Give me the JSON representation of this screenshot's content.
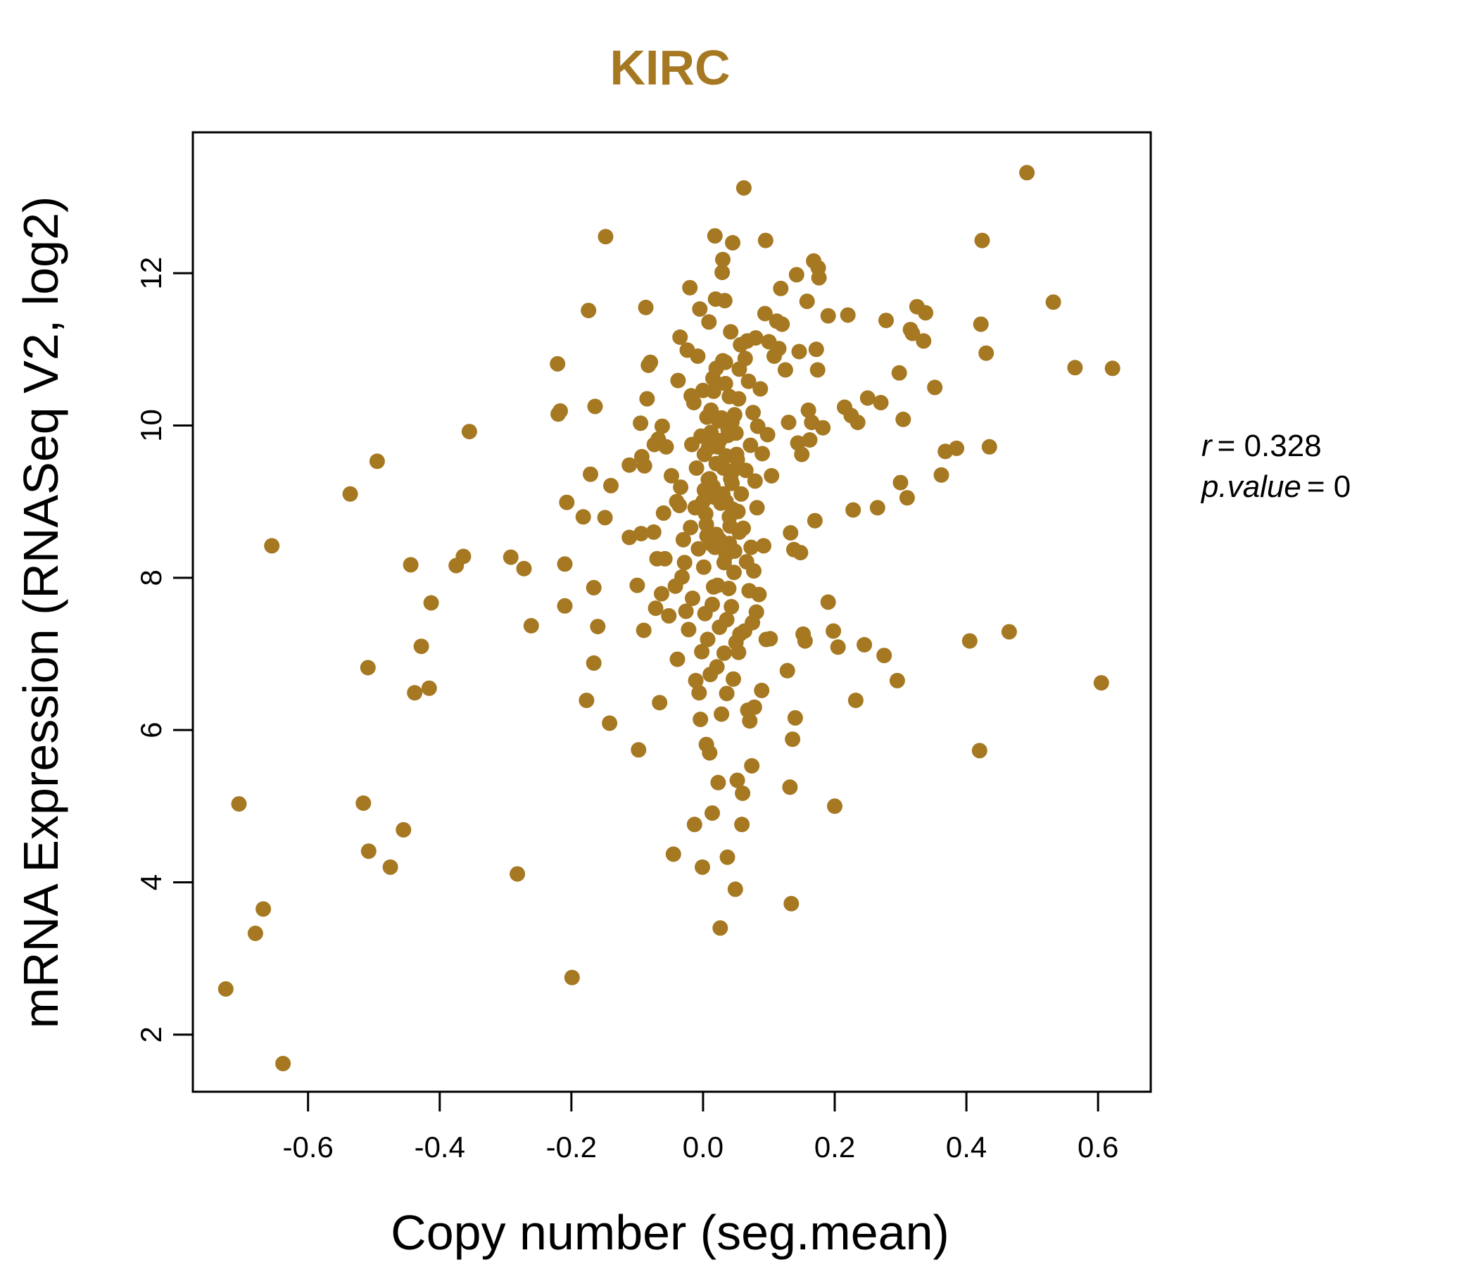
{
  "chart_data": {
    "type": "scatter",
    "title": "KIRC",
    "xlabel": "Copy number (seg.mean)",
    "ylabel": "mRNA Expression (RNASeq V2, log2)",
    "xlim": [
      -0.775,
      0.68
    ],
    "ylim": [
      1.25,
      13.85
    ],
    "xticks": [
      -0.6,
      -0.4,
      -0.2,
      0.0,
      0.2,
      0.4,
      0.6
    ],
    "xtick_labels": [
      "-0.6",
      "-0.4",
      "-0.2",
      "0.0",
      "0.2",
      "0.4",
      "0.6"
    ],
    "yticks": [
      2,
      4,
      6,
      8,
      10,
      12
    ],
    "ytick_labels": [
      "2",
      "4",
      "6",
      "8",
      "10",
      "12"
    ],
    "grid": false,
    "legend": "none",
    "colors": {
      "point": "#A57821",
      "title": "#A57821",
      "axis": "#000000"
    },
    "stats": {
      "r_label": "r",
      "r_value": "= 0.328",
      "p_label": "p.value",
      "p_value": "= 0"
    },
    "points": [
      [
        -0.725,
        2.6
      ],
      [
        -0.705,
        5.03
      ],
      [
        -0.68,
        3.33
      ],
      [
        -0.668,
        3.65
      ],
      [
        -0.655,
        8.42
      ],
      [
        -0.638,
        1.62
      ],
      [
        -0.536,
        9.1
      ],
      [
        -0.516,
        5.04
      ],
      [
        -0.509,
        6.82
      ],
      [
        -0.508,
        4.41
      ],
      [
        -0.495,
        9.53
      ],
      [
        -0.475,
        4.2
      ],
      [
        -0.455,
        4.69
      ],
      [
        -0.444,
        8.17
      ],
      [
        -0.438,
        6.49
      ],
      [
        -0.428,
        7.1
      ],
      [
        -0.416,
        6.55
      ],
      [
        -0.413,
        7.67
      ],
      [
        -0.375,
        8.16
      ],
      [
        -0.364,
        8.28
      ],
      [
        -0.355,
        9.92
      ],
      [
        -0.292,
        8.27
      ],
      [
        -0.282,
        4.11
      ],
      [
        -0.272,
        8.12
      ],
      [
        -0.261,
        7.37
      ],
      [
        -0.221,
        10.81
      ],
      [
        -0.22,
        10.15
      ],
      [
        -0.217,
        10.19
      ],
      [
        -0.21,
        8.18
      ],
      [
        -0.21,
        7.63
      ],
      [
        -0.207,
        8.99
      ],
      [
        -0.199,
        2.75
      ],
      [
        -0.182,
        8.8
      ],
      [
        -0.177,
        6.39
      ],
      [
        -0.174,
        11.51
      ],
      [
        -0.171,
        9.36
      ],
      [
        -0.166,
        7.87
      ],
      [
        -0.166,
        6.88
      ],
      [
        -0.164,
        10.25
      ],
      [
        -0.16,
        7.36
      ],
      [
        -0.149,
        8.79
      ],
      [
        -0.148,
        12.48
      ],
      [
        -0.142,
        6.09
      ],
      [
        -0.14,
        9.21
      ],
      [
        -0.112,
        9.48
      ],
      [
        -0.112,
        8.53
      ],
      [
        -0.1,
        7.9
      ],
      [
        -0.098,
        5.74
      ],
      [
        -0.095,
        10.03
      ],
      [
        -0.094,
        8.58
      ],
      [
        -0.093,
        9.59
      ],
      [
        -0.09,
        7.31
      ],
      [
        -0.089,
        9.47
      ],
      [
        -0.087,
        11.55
      ],
      [
        -0.085,
        10.35
      ],
      [
        -0.083,
        10.79
      ],
      [
        -0.08,
        10.83
      ],
      [
        -0.075,
        8.6
      ],
      [
        -0.074,
        9.75
      ],
      [
        -0.072,
        7.6
      ],
      [
        -0.07,
        8.25
      ],
      [
        -0.068,
        9.82
      ],
      [
        -0.066,
        6.36
      ],
      [
        -0.063,
        7.79
      ],
      [
        -0.062,
        9.99
      ],
      [
        -0.06,
        8.85
      ],
      [
        -0.058,
        8.25
      ],
      [
        -0.056,
        9.72
      ],
      [
        -0.052,
        7.5
      ],
      [
        -0.048,
        9.34
      ],
      [
        -0.045,
        4.37
      ],
      [
        -0.042,
        7.89
      ],
      [
        -0.04,
        9.0
      ],
      [
        -0.039,
        6.93
      ],
      [
        -0.038,
        10.59
      ],
      [
        -0.036,
        8.95
      ],
      [
        -0.035,
        11.16
      ],
      [
        -0.034,
        9.19
      ],
      [
        -0.032,
        8.01
      ],
      [
        -0.03,
        8.5
      ],
      [
        -0.028,
        8.2
      ],
      [
        -0.026,
        7.56
      ],
      [
        -0.024,
        10.99
      ],
      [
        -0.022,
        7.32
      ],
      [
        -0.02,
        11.81
      ],
      [
        -0.019,
        8.66
      ],
      [
        -0.018,
        10.39
      ],
      [
        -0.017,
        9.75
      ],
      [
        -0.016,
        7.73
      ],
      [
        -0.014,
        10.3
      ],
      [
        -0.013,
        4.76
      ],
      [
        -0.012,
        8.92
      ],
      [
        -0.011,
        6.65
      ],
      [
        -0.01,
        9.44
      ],
      [
        -0.008,
        10.91
      ],
      [
        -0.007,
        8.38
      ],
      [
        -0.006,
        6.49
      ],
      [
        -0.005,
        11.53
      ],
      [
        -0.004,
        6.14
      ],
      [
        -0.003,
        9.86
      ],
      [
        -0.002,
        7.03
      ],
      [
        -0.001,
        4.2
      ],
      [
        0.0,
        10.46
      ],
      [
        0.001,
        8.14
      ],
      [
        0.002,
        9.62
      ],
      [
        0.003,
        7.53
      ],
      [
        0.004,
        8.84
      ],
      [
        0.005,
        5.81
      ],
      [
        0.006,
        10.11
      ],
      [
        0.007,
        7.19
      ],
      [
        0.008,
        9.29
      ],
      [
        0.009,
        11.36
      ],
      [
        0.01,
        5.7
      ],
      [
        0.011,
        6.73
      ],
      [
        0.012,
        9.91
      ],
      [
        0.013,
        8.44
      ],
      [
        0.014,
        4.91
      ],
      [
        0.015,
        10.62
      ],
      [
        0.016,
        7.88
      ],
      [
        0.017,
        9.06
      ],
      [
        0.018,
        12.49
      ],
      [
        0.019,
        11.66
      ],
      [
        0.02,
        8.57
      ],
      [
        0.021,
        6.83
      ],
      [
        0.022,
        9.72
      ],
      [
        0.023,
        5.31
      ],
      [
        0.024,
        10.06
      ],
      [
        0.025,
        7.35
      ],
      [
        0.026,
        3.4
      ],
      [
        0.027,
        8.98
      ],
      [
        0.028,
        6.21
      ],
      [
        0.029,
        12.01
      ],
      [
        0.03,
        12.18
      ],
      [
        0.031,
        9.44
      ],
      [
        0.032,
        7.01
      ],
      [
        0.033,
        11.64
      ],
      [
        0.034,
        10.83
      ],
      [
        0.035,
        8.3
      ],
      [
        0.036,
        6.48
      ],
      [
        0.037,
        4.33
      ],
      [
        0.038,
        9.87
      ],
      [
        0.039,
        7.86
      ],
      [
        0.04,
        10.38
      ],
      [
        0.041,
        8.68
      ],
      [
        0.042,
        11.23
      ],
      [
        0.043,
        7.62
      ],
      [
        0.044,
        9.24
      ],
      [
        0.045,
        12.4
      ],
      [
        0.046,
        6.67
      ],
      [
        0.047,
        8.07
      ],
      [
        0.048,
        10.14
      ],
      [
        0.049,
        3.91
      ],
      [
        0.05,
        7.15
      ],
      [
        0.051,
        9.62
      ],
      [
        0.052,
        5.34
      ],
      [
        0.053,
        8.87
      ],
      [
        0.054,
        7.02
      ],
      [
        0.055,
        10.74
      ],
      [
        0.056,
        7.26
      ],
      [
        0.057,
        11.06
      ],
      [
        0.058,
        9.1
      ],
      [
        0.059,
        4.76
      ],
      [
        0.06,
        5.17
      ],
      [
        0.061,
        8.65
      ],
      [
        0.062,
        13.12
      ],
      [
        0.063,
        7.3
      ],
      [
        0.064,
        10.88
      ],
      [
        0.065,
        9.41
      ],
      [
        0.066,
        8.21
      ],
      [
        0.067,
        11.11
      ],
      [
        0.068,
        6.26
      ],
      [
        0.069,
        10.58
      ],
      [
        0.07,
        7.83
      ],
      [
        0.071,
        6.12
      ],
      [
        0.072,
        9.74
      ],
      [
        0.073,
        8.4
      ],
      [
        0.074,
        5.53
      ],
      [
        0.075,
        7.41
      ],
      [
        0.076,
        10.17
      ],
      [
        0.077,
        8.09
      ],
      [
        0.078,
        6.3
      ],
      [
        0.079,
        9.27
      ],
      [
        0.08,
        11.15
      ],
      [
        0.081,
        7.55
      ],
      [
        0.082,
        8.92
      ],
      [
        0.083,
        9.99
      ],
      [
        0.085,
        7.78
      ],
      [
        0.087,
        10.48
      ],
      [
        0.089,
        6.52
      ],
      [
        0.09,
        9.63
      ],
      [
        0.092,
        8.42
      ],
      [
        0.094,
        11.47
      ],
      [
        0.095,
        12.43
      ],
      [
        0.096,
        7.19
      ],
      [
        0.098,
        9.88
      ],
      [
        0.1,
        11.1
      ],
      [
        0.102,
        7.2
      ],
      [
        0.104,
        9.34
      ],
      [
        0.108,
        10.91
      ],
      [
        0.112,
        11.37
      ],
      [
        0.115,
        11.01
      ],
      [
        0.118,
        11.8
      ],
      [
        0.12,
        11.33
      ],
      [
        0.125,
        10.73
      ],
      [
        0.128,
        6.78
      ],
      [
        0.13,
        10.04
      ],
      [
        0.132,
        5.25
      ],
      [
        0.133,
        8.59
      ],
      [
        0.134,
        3.72
      ],
      [
        0.136,
        5.88
      ],
      [
        0.138,
        8.37
      ],
      [
        0.14,
        6.16
      ],
      [
        0.142,
        11.98
      ],
      [
        0.144,
        9.77
      ],
      [
        0.146,
        10.97
      ],
      [
        0.148,
        8.33
      ],
      [
        0.15,
        9.62
      ],
      [
        0.152,
        7.26
      ],
      [
        0.155,
        7.17
      ],
      [
        0.158,
        11.63
      ],
      [
        0.16,
        10.2
      ],
      [
        0.162,
        9.81
      ],
      [
        0.165,
        10.04
      ],
      [
        0.168,
        12.16
      ],
      [
        0.17,
        8.75
      ],
      [
        0.172,
        11.0
      ],
      [
        0.174,
        10.73
      ],
      [
        0.175,
        12.07
      ],
      [
        0.176,
        11.94
      ],
      [
        0.182,
        9.97
      ],
      [
        0.19,
        11.44
      ],
      [
        0.19,
        7.68
      ],
      [
        0.198,
        7.3
      ],
      [
        0.2,
        5.0
      ],
      [
        0.205,
        7.09
      ],
      [
        0.215,
        10.24
      ],
      [
        0.22,
        11.45
      ],
      [
        0.225,
        10.13
      ],
      [
        0.228,
        8.89
      ],
      [
        0.232,
        6.39
      ],
      [
        0.235,
        10.04
      ],
      [
        0.245,
        7.12
      ],
      [
        0.25,
        10.36
      ],
      [
        0.265,
        8.92
      ],
      [
        0.27,
        10.3
      ],
      [
        0.275,
        6.98
      ],
      [
        0.278,
        11.38
      ],
      [
        0.295,
        6.65
      ],
      [
        0.298,
        10.69
      ],
      [
        0.3,
        9.25
      ],
      [
        0.304,
        10.08
      ],
      [
        0.31,
        9.05
      ],
      [
        0.315,
        11.26
      ],
      [
        0.318,
        11.21
      ],
      [
        0.325,
        11.56
      ],
      [
        0.335,
        11.11
      ],
      [
        0.338,
        11.48
      ],
      [
        0.352,
        10.5
      ],
      [
        0.362,
        9.35
      ],
      [
        0.368,
        9.66
      ],
      [
        0.385,
        9.7
      ],
      [
        0.405,
        7.17
      ],
      [
        0.42,
        5.73
      ],
      [
        0.422,
        11.33
      ],
      [
        0.424,
        12.43
      ],
      [
        0.43,
        10.95
      ],
      [
        0.435,
        9.72
      ],
      [
        0.465,
        7.29
      ],
      [
        0.492,
        13.32
      ],
      [
        0.532,
        11.62
      ],
      [
        0.565,
        10.76
      ],
      [
        0.605,
        6.62
      ],
      [
        0.622,
        10.75
      ],
      [
        0.0,
        9.0
      ],
      [
        0.01,
        9.3
      ],
      [
        0.02,
        9.5
      ],
      [
        0.025,
        9.8
      ],
      [
        0.03,
        9.1
      ],
      [
        0.035,
        9.6
      ],
      [
        0.04,
        8.8
      ],
      [
        0.045,
        9.4
      ],
      [
        0.05,
        9.9
      ],
      [
        0.055,
        8.6
      ],
      [
        0.005,
        8.7
      ],
      [
        0.015,
        9.2
      ],
      [
        0.025,
        8.5
      ],
      [
        0.035,
        9.0
      ],
      [
        0.045,
        8.9
      ],
      [
        0.012,
        10.2
      ],
      [
        0.028,
        10.1
      ],
      [
        0.042,
        9.3
      ],
      [
        0.018,
        8.4
      ],
      [
        0.032,
        8.2
      ],
      [
        0.008,
        9.7
      ],
      [
        0.038,
        9.95
      ],
      [
        0.022,
        7.9
      ],
      [
        0.048,
        8.35
      ],
      [
        0.002,
        9.15
      ],
      [
        0.016,
        10.45
      ],
      [
        0.034,
        10.55
      ],
      [
        0.052,
        9.55
      ],
      [
        0.006,
        8.55
      ],
      [
        0.026,
        9.05
      ],
      [
        0.044,
        10.05
      ],
      [
        0.014,
        7.65
      ],
      [
        0.036,
        7.45
      ],
      [
        0.054,
        10.35
      ],
      [
        0.02,
        10.75
      ],
      [
        0.04,
        8.45
      ],
      [
        0.01,
        9.85
      ],
      [
        0.03,
        10.85
      ]
    ]
  }
}
